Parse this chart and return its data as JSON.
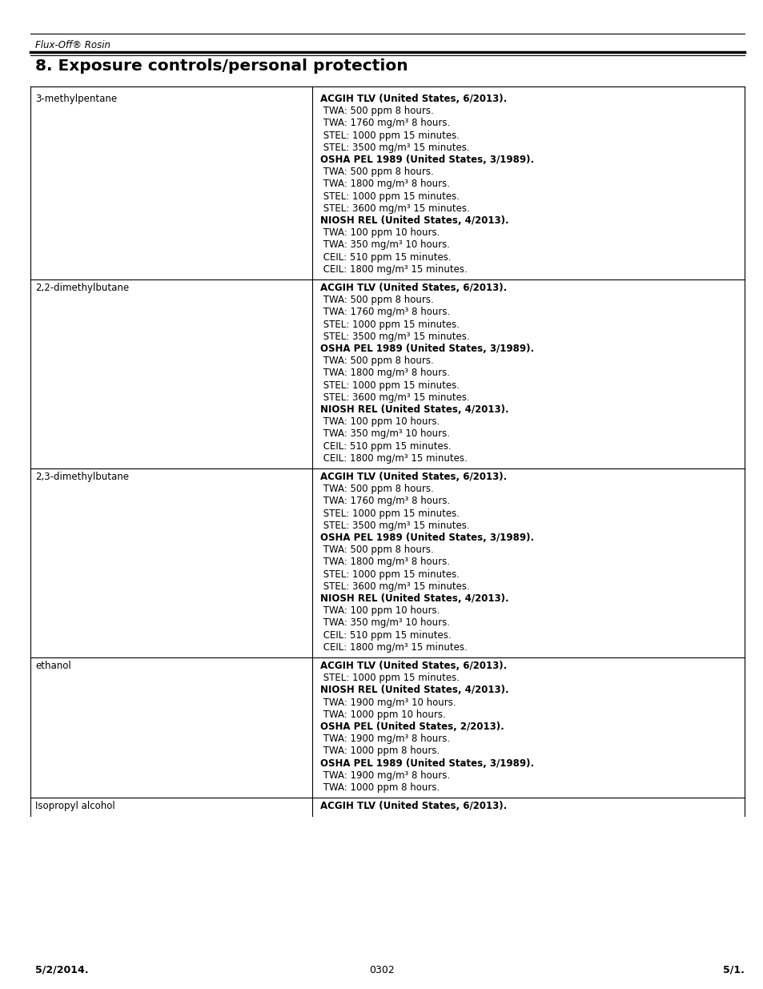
{
  "header_italic": "Flux-Off® Rosin",
  "section_title": "8. Exposure controls/personal protection",
  "footer_left": "5/2/2014.",
  "footer_center": "0302",
  "footer_right": "5/1.",
  "rows": [
    {
      "chemical": "3-methylpentane",
      "entries": [
        {
          "bold": true,
          "indent": false,
          "text": "ACGIH TLV (United States, 6/2013)."
        },
        {
          "bold": false,
          "indent": true,
          "text": " TWA: 500 ppm 8 hours."
        },
        {
          "bold": false,
          "indent": true,
          "text": " TWA: 1760 mg/m³ 8 hours."
        },
        {
          "bold": false,
          "indent": true,
          "text": " STEL: 1000 ppm 15 minutes."
        },
        {
          "bold": false,
          "indent": true,
          "text": " STEL: 3500 mg/m³ 15 minutes."
        },
        {
          "bold": true,
          "indent": false,
          "text": "OSHA PEL 1989 (United States, 3/1989)."
        },
        {
          "bold": false,
          "indent": true,
          "text": " TWA: 500 ppm 8 hours."
        },
        {
          "bold": false,
          "indent": true,
          "text": " TWA: 1800 mg/m³ 8 hours."
        },
        {
          "bold": false,
          "indent": true,
          "text": " STEL: 1000 ppm 15 minutes."
        },
        {
          "bold": false,
          "indent": true,
          "text": " STEL: 3600 mg/m³ 15 minutes."
        },
        {
          "bold": true,
          "indent": false,
          "text": "NIOSH REL (United States, 4/2013)."
        },
        {
          "bold": false,
          "indent": true,
          "text": " TWA: 100 ppm 10 hours."
        },
        {
          "bold": false,
          "indent": true,
          "text": " TWA: 350 mg/m³ 10 hours."
        },
        {
          "bold": false,
          "indent": true,
          "text": " CEIL: 510 ppm 15 minutes."
        },
        {
          "bold": false,
          "indent": true,
          "text": " CEIL: 1800 mg/m³ 15 minutes."
        }
      ]
    },
    {
      "chemical": "2,2-dimethylbutane",
      "entries": [
        {
          "bold": true,
          "indent": false,
          "text": "ACGIH TLV (United States, 6/2013)."
        },
        {
          "bold": false,
          "indent": true,
          "text": " TWA: 500 ppm 8 hours."
        },
        {
          "bold": false,
          "indent": true,
          "text": " TWA: 1760 mg/m³ 8 hours."
        },
        {
          "bold": false,
          "indent": true,
          "text": " STEL: 1000 ppm 15 minutes."
        },
        {
          "bold": false,
          "indent": true,
          "text": " STEL: 3500 mg/m³ 15 minutes."
        },
        {
          "bold": true,
          "indent": false,
          "text": "OSHA PEL 1989 (United States, 3/1989)."
        },
        {
          "bold": false,
          "indent": true,
          "text": " TWA: 500 ppm 8 hours."
        },
        {
          "bold": false,
          "indent": true,
          "text": " TWA: 1800 mg/m³ 8 hours."
        },
        {
          "bold": false,
          "indent": true,
          "text": " STEL: 1000 ppm 15 minutes."
        },
        {
          "bold": false,
          "indent": true,
          "text": " STEL: 3600 mg/m³ 15 minutes."
        },
        {
          "bold": true,
          "indent": false,
          "text": "NIOSH REL (United States, 4/2013)."
        },
        {
          "bold": false,
          "indent": true,
          "text": " TWA: 100 ppm 10 hours."
        },
        {
          "bold": false,
          "indent": true,
          "text": " TWA: 350 mg/m³ 10 hours."
        },
        {
          "bold": false,
          "indent": true,
          "text": " CEIL: 510 ppm 15 minutes."
        },
        {
          "bold": false,
          "indent": true,
          "text": " CEIL: 1800 mg/m³ 15 minutes."
        }
      ]
    },
    {
      "chemical": "2,3-dimethylbutane",
      "entries": [
        {
          "bold": true,
          "indent": false,
          "text": "ACGIH TLV (United States, 6/2013)."
        },
        {
          "bold": false,
          "indent": true,
          "text": " TWA: 500 ppm 8 hours."
        },
        {
          "bold": false,
          "indent": true,
          "text": " TWA: 1760 mg/m³ 8 hours."
        },
        {
          "bold": false,
          "indent": true,
          "text": " STEL: 1000 ppm 15 minutes."
        },
        {
          "bold": false,
          "indent": true,
          "text": " STEL: 3500 mg/m³ 15 minutes."
        },
        {
          "bold": true,
          "indent": false,
          "text": "OSHA PEL 1989 (United States, 3/1989)."
        },
        {
          "bold": false,
          "indent": true,
          "text": " TWA: 500 ppm 8 hours."
        },
        {
          "bold": false,
          "indent": true,
          "text": " TWA: 1800 mg/m³ 8 hours."
        },
        {
          "bold": false,
          "indent": true,
          "text": " STEL: 1000 ppm 15 minutes."
        },
        {
          "bold": false,
          "indent": true,
          "text": " STEL: 3600 mg/m³ 15 minutes."
        },
        {
          "bold": true,
          "indent": false,
          "text": "NIOSH REL (United States, 4/2013)."
        },
        {
          "bold": false,
          "indent": true,
          "text": " TWA: 100 ppm 10 hours."
        },
        {
          "bold": false,
          "indent": true,
          "text": " TWA: 350 mg/m³ 10 hours."
        },
        {
          "bold": false,
          "indent": true,
          "text": " CEIL: 510 ppm 15 minutes."
        },
        {
          "bold": false,
          "indent": true,
          "text": " CEIL: 1800 mg/m³ 15 minutes."
        }
      ]
    },
    {
      "chemical": "ethanol",
      "entries": [
        {
          "bold": true,
          "indent": false,
          "text": "ACGIH TLV (United States, 6/2013)."
        },
        {
          "bold": false,
          "indent": true,
          "text": " STEL: 1000 ppm 15 minutes."
        },
        {
          "bold": true,
          "indent": false,
          "text": "NIOSH REL (United States, 4/2013)."
        },
        {
          "bold": false,
          "indent": true,
          "text": " TWA: 1900 mg/m³ 10 hours."
        },
        {
          "bold": false,
          "indent": true,
          "text": " TWA: 1000 ppm 10 hours."
        },
        {
          "bold": true,
          "indent": false,
          "text": "OSHA PEL (United States, 2/2013)."
        },
        {
          "bold": false,
          "indent": true,
          "text": " TWA: 1900 mg/m³ 8 hours."
        },
        {
          "bold": false,
          "indent": true,
          "text": " TWA: 1000 ppm 8 hours."
        },
        {
          "bold": true,
          "indent": false,
          "text": "OSHA PEL 1989 (United States, 3/1989)."
        },
        {
          "bold": false,
          "indent": true,
          "text": " TWA: 1900 mg/m³ 8 hours."
        },
        {
          "bold": false,
          "indent": true,
          "text": " TWA: 1000 ppm 8 hours."
        }
      ]
    },
    {
      "chemical": "Isopropyl alcohol",
      "entries": [
        {
          "bold": true,
          "indent": false,
          "text": "ACGIH TLV (United States, 6/2013)."
        }
      ]
    }
  ]
}
